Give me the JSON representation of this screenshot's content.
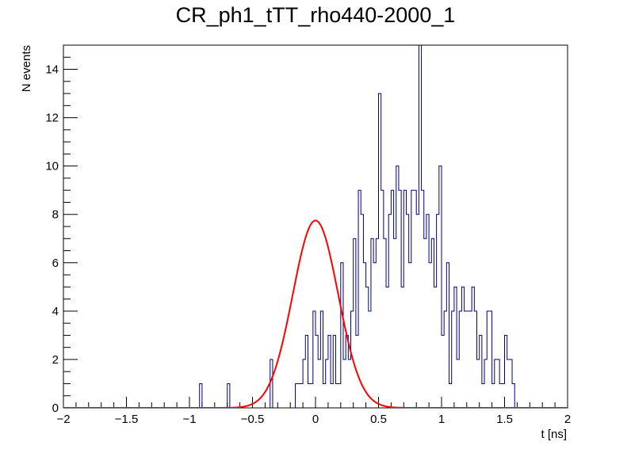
{
  "chart_data": {
    "type": "histogram",
    "title": "CR_ph1_tTT_rho440-2000_1",
    "xlabel": "t [ns]",
    "ylabel": "N events",
    "xlim": [
      -2,
      2
    ],
    "ylim": [
      0,
      15
    ],
    "x_ticks": [
      -2,
      -1.5,
      -1,
      -0.5,
      0,
      0.5,
      1,
      1.5,
      2
    ],
    "x_tick_labels": [
      "−2",
      "−1.5",
      "−1",
      "−0.5",
      "0",
      "0.5",
      "1",
      "1.5",
      "2"
    ],
    "y_ticks": [
      0,
      2,
      4,
      6,
      8,
      10,
      12,
      14
    ],
    "y_tick_labels": [
      "0",
      "2",
      "4",
      "6",
      "8",
      "10",
      "12",
      "14"
    ],
    "grid": false,
    "legend": "none",
    "bin_width": 0.02,
    "histogram": {
      "color": "#000080",
      "x_start": -2,
      "counts": [
        0,
        0,
        0,
        0,
        0,
        0,
        0,
        0,
        0,
        0,
        0,
        0,
        0,
        0,
        0,
        0,
        0,
        0,
        0,
        0,
        0,
        0,
        0,
        0,
        0,
        0,
        0,
        0,
        0,
        0,
        0,
        0,
        0,
        0,
        0,
        0,
        0,
        0,
        0,
        0,
        0,
        0,
        0,
        0,
        0,
        0,
        0,
        0,
        0,
        0,
        0,
        0,
        0,
        0,
        1,
        0,
        0,
        0,
        0,
        0,
        0,
        0,
        0,
        0,
        0,
        1,
        0,
        0,
        0,
        0,
        0,
        0,
        0,
        0,
        0,
        0,
        0,
        0,
        0,
        0,
        0,
        0,
        2,
        0,
        0,
        0,
        0,
        0,
        0,
        0,
        0,
        0,
        1,
        1,
        1,
        2,
        3,
        1,
        1,
        4,
        3,
        2,
        4,
        1,
        2,
        3,
        1,
        3,
        1,
        1,
        6,
        2,
        3,
        2,
        4,
        7,
        3,
        9,
        8,
        6,
        5,
        4,
        7,
        6,
        7,
        13,
        9,
        7,
        5,
        8,
        9,
        7,
        10,
        9,
        5,
        9,
        8,
        6,
        9,
        9,
        8,
        15,
        9,
        7,
        8,
        6,
        7,
        5,
        8,
        10,
        3,
        4,
        6,
        1,
        4,
        5,
        2,
        4,
        5,
        4,
        4,
        4,
        5,
        4,
        2,
        3,
        1,
        2,
        4,
        4,
        1,
        2,
        2,
        1,
        1,
        3,
        2,
        2,
        1,
        0,
        0,
        0,
        0,
        0,
        0,
        0,
        0,
        0,
        0,
        0,
        0,
        0,
        0,
        0,
        0,
        0,
        0,
        0,
        0,
        0
      ]
    },
    "fit": {
      "function": "gaussian",
      "color": "#ff0000",
      "amplitude": 7.75,
      "mean": 0.0,
      "sigma": 0.18
    }
  }
}
